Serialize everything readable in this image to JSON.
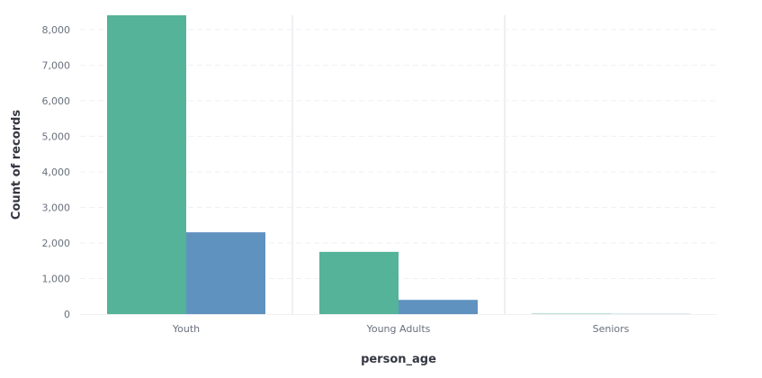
{
  "chart_data": {
    "type": "bar",
    "xlabel": "person_age",
    "ylabel": "Count of records",
    "categories": [
      "Youth",
      "Young Adults",
      "Seniors"
    ],
    "series": [
      {
        "color": "#54b399",
        "values": [
          8400,
          1750,
          10
        ]
      },
      {
        "color": "#6092c0",
        "values": [
          2300,
          400,
          5
        ]
      }
    ],
    "ylim": [
      0,
      8400
    ],
    "yticks": [
      0,
      1000,
      2000,
      3000,
      4000,
      5000,
      6000,
      7000,
      8000
    ],
    "yticklabels": [
      "0",
      "1,000",
      "2,000",
      "3,000",
      "4,000",
      "5,000",
      "6,000",
      "7,000",
      "8,000"
    ],
    "grid": true,
    "legend": "none"
  }
}
